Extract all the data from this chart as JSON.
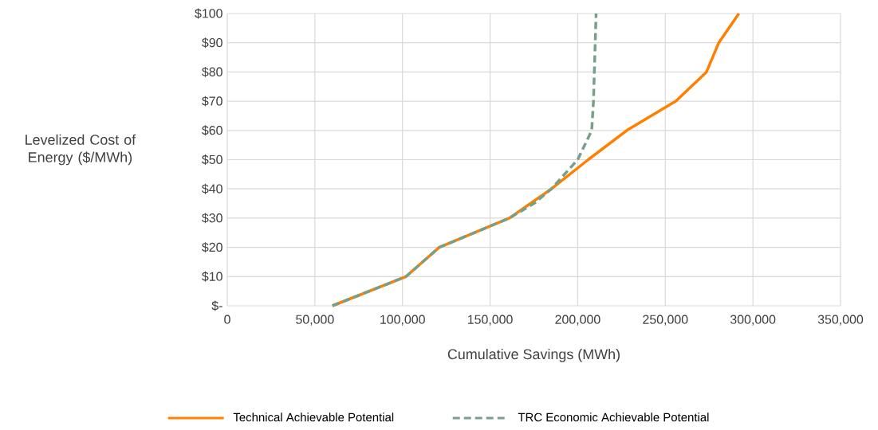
{
  "chart_data": {
    "type": "line",
    "xlabel": "Cumulative Savings (MWh)",
    "ylabel": "Levelized Cost of Energy ($/MWh)",
    "xlim": [
      0,
      350000
    ],
    "ylim": [
      0,
      100
    ],
    "xticks": [
      {
        "value": 0,
        "label": "0"
      },
      {
        "value": 50000,
        "label": "50,000"
      },
      {
        "value": 100000,
        "label": "100,000"
      },
      {
        "value": 150000,
        "label": "150,000"
      },
      {
        "value": 200000,
        "label": "200,000"
      },
      {
        "value": 250000,
        "label": "250,000"
      },
      {
        "value": 300000,
        "label": "300,000"
      },
      {
        "value": 350000,
        "label": "350,000"
      }
    ],
    "yticks": [
      {
        "value": 0,
        "label": "$-"
      },
      {
        "value": 10,
        "label": "$10"
      },
      {
        "value": 20,
        "label": "$20"
      },
      {
        "value": 30,
        "label": "$30"
      },
      {
        "value": 40,
        "label": "$40"
      },
      {
        "value": 50,
        "label": "$50"
      },
      {
        "value": 60,
        "label": "$60"
      },
      {
        "value": 70,
        "label": "$70"
      },
      {
        "value": 80,
        "label": "$80"
      },
      {
        "value": 90,
        "label": "$90"
      },
      {
        "value": 100,
        "label": "$100"
      }
    ],
    "grid": true,
    "legend": "bottom",
    "marker": "none",
    "series": [
      {
        "name": "Technical Achievable Potential",
        "color": "#ff8000",
        "line_style": "solid",
        "x": [
          60000,
          102000,
          121000,
          161000,
          185000,
          206000,
          228000,
          256000,
          273500,
          280500,
          292000
        ],
        "values": [
          0,
          10,
          20,
          30,
          40,
          50,
          60,
          70,
          80,
          90,
          100
        ]
      },
      {
        "name": "TRC Economic Achievable Potential",
        "color": "#76a08a",
        "line_style": "dashed",
        "x": [
          60000,
          102000,
          121000,
          161000,
          175000,
          185000,
          194000,
          200000,
          208000,
          209000,
          209500,
          210000,
          210500
        ],
        "values": [
          0,
          10,
          20,
          30,
          35,
          40,
          46,
          50,
          60,
          70,
          80,
          90,
          100
        ]
      }
    ]
  }
}
